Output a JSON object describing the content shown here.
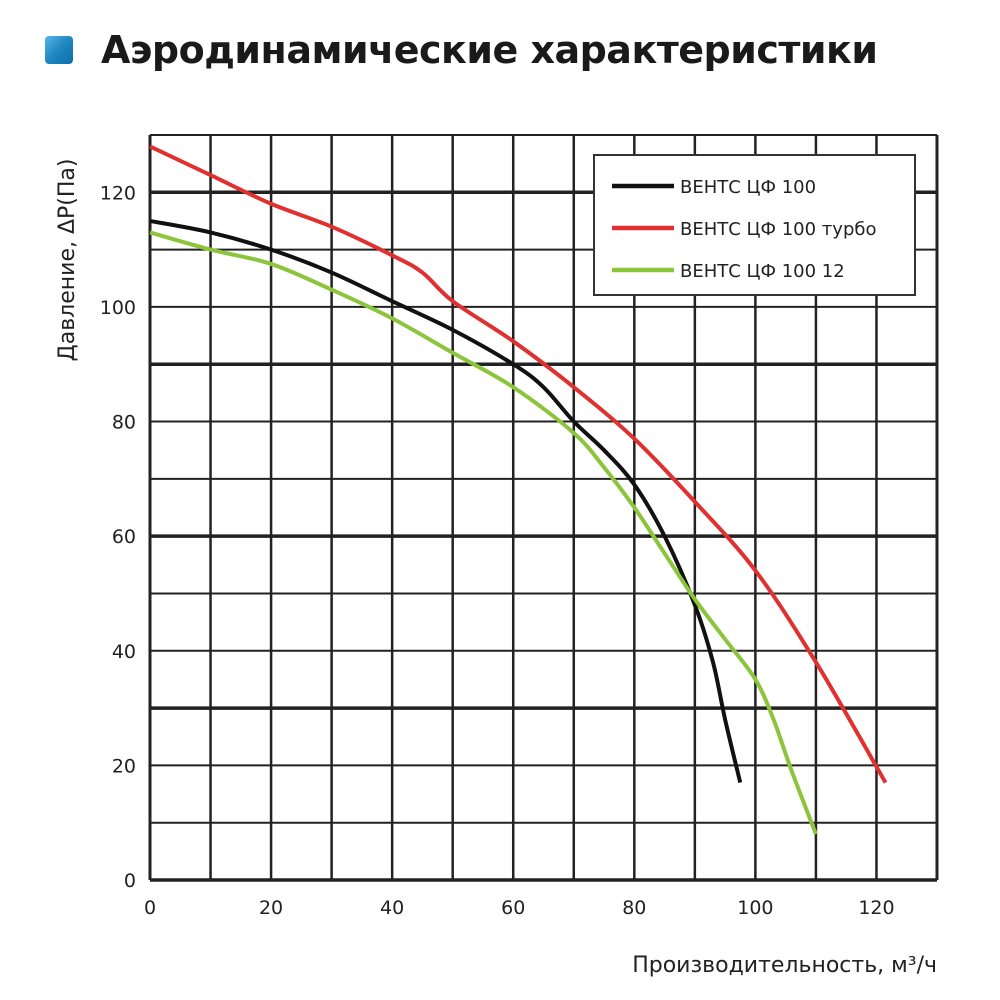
{
  "header": {
    "title": "Аэродинамические характеристики",
    "icon": "blue-square-icon"
  },
  "chart_data": {
    "type": "line",
    "title": "",
    "xlabel": "Производительность, м³/ч",
    "ylabel": "Давление, ΔР(Па)",
    "xlim": [
      0,
      130
    ],
    "ylim": [
      0,
      130
    ],
    "xticks": [
      0,
      20,
      40,
      60,
      80,
      100,
      120
    ],
    "yticks": [
      0,
      20,
      40,
      60,
      80,
      100,
      120
    ],
    "grid": true,
    "legend_position": "top-right",
    "series": [
      {
        "name": "ВЕНТС ЦФ 100",
        "color": "#111111",
        "x": [
          0,
          10,
          20,
          30,
          40,
          50,
          60,
          65,
          70,
          75,
          80,
          85,
          90,
          93,
          95,
          97.5
        ],
        "y": [
          115,
          113,
          110,
          106,
          101,
          96,
          90,
          86,
          80,
          75,
          69,
          60,
          48,
          38,
          28,
          17
        ]
      },
      {
        "name": "ВЕНТС ЦФ 100 турбо",
        "color": "#e03030",
        "x": [
          0,
          10,
          20,
          30,
          40,
          45,
          50,
          60,
          70,
          80,
          90,
          100,
          110,
          121.5
        ],
        "y": [
          128,
          123,
          118,
          114,
          109,
          106,
          101,
          94,
          86,
          77,
          66,
          54,
          38,
          17
        ]
      },
      {
        "name": "ВЕНТС ЦФ 100 12",
        "color": "#8cc43c",
        "x": [
          0,
          10,
          20,
          30,
          40,
          50,
          60,
          70,
          75,
          80,
          85,
          90,
          95,
          100,
          103,
          106,
          110
        ],
        "y": [
          113,
          110,
          107.5,
          103,
          98,
          92,
          86,
          78,
          72,
          65,
          57,
          49,
          42,
          35,
          28,
          19,
          8
        ]
      }
    ]
  }
}
